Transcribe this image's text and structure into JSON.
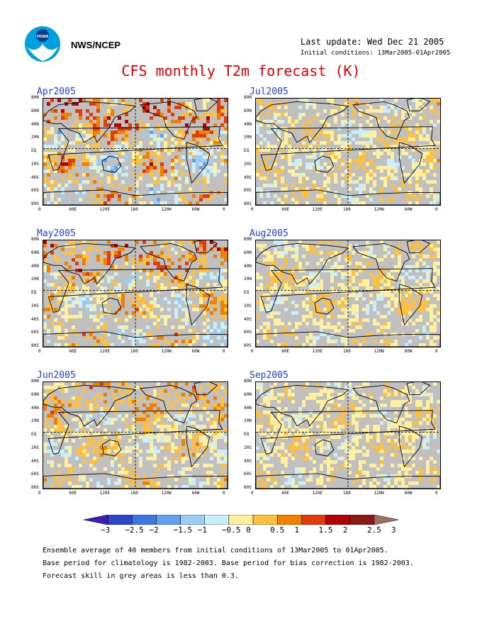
{
  "header": {
    "org_label": "NWS/NCEP",
    "last_update": "Last update: Wed Dec 21 2005",
    "initial_conditions": "Initial conditions: 13Mar2005-01Apr2005",
    "title": "CFS monthly T2m forecast (K)"
  },
  "logo": {
    "icon": "noaa-logo-icon",
    "colors": [
      "#00a0e0",
      "#ffffff",
      "#003c8c"
    ]
  },
  "axes": {
    "y_ticks": [
      "80N",
      "60N",
      "40N",
      "20N",
      "EQ",
      "20S",
      "40S",
      "60S",
      "80S"
    ],
    "x_ticks": [
      "0",
      "60E",
      "120E",
      "180",
      "120W",
      "60W",
      "0"
    ]
  },
  "panels": [
    {
      "id": "apr",
      "label": "Apr2005",
      "intensity": 1.0
    },
    {
      "id": "jul",
      "label": "Jul2005",
      "intensity": 0.45
    },
    {
      "id": "may",
      "label": "May2005",
      "intensity": 0.8
    },
    {
      "id": "aug",
      "label": "Aug2005",
      "intensity": 0.4
    },
    {
      "id": "jun",
      "label": "Jun2005",
      "intensity": 0.55
    },
    {
      "id": "sep",
      "label": "Sep2005",
      "intensity": 0.35
    }
  ],
  "colorbar": {
    "labels": [
      "−3",
      "−2.5",
      "−2",
      "−1.5",
      "−1",
      "−0.5",
      "0",
      "0.5",
      "1",
      "1.5",
      "2",
      "2.5",
      "3"
    ],
    "colors": [
      "#3c1cb4",
      "#2c46c8",
      "#3c78e0",
      "#64a0f0",
      "#9ccdf4",
      "#c8f0fc",
      "#fff0a0",
      "#ffc040",
      "#f08000",
      "#e03c0c",
      "#b40000",
      "#8c1a14",
      "#a07060"
    ]
  },
  "grey_color": "#c0c0c0",
  "notes": [
    "Ensemble average of 40 members from initial conditions of 13Mar2005 to 01Apr2005.",
    "Base period for climatology is 1982-2003. Base period for bias correction is 1982-2003.",
    "Forecast skill in grey areas is less than 0.3."
  ]
}
